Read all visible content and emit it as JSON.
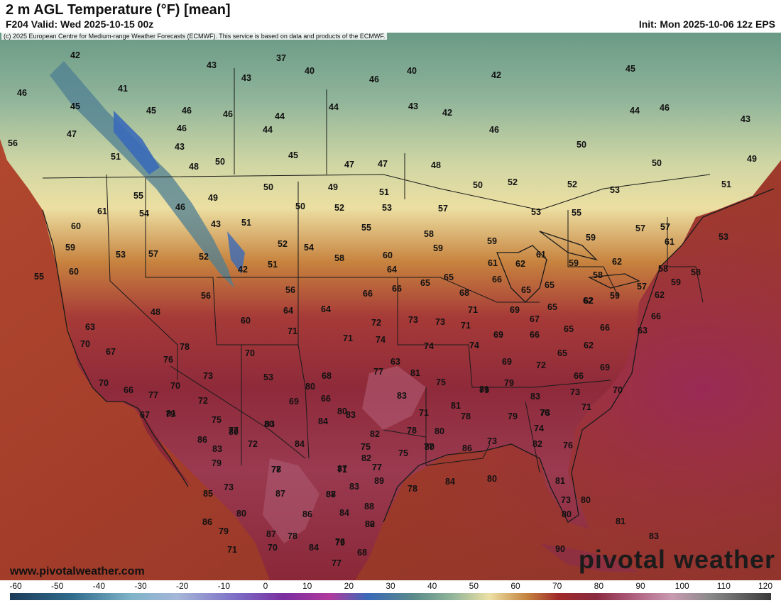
{
  "header": {
    "title": "2 m AGL Temperature (°F) [mean]",
    "valid": "F204 Valid: Wed 2025-10-15 00z",
    "init": "Init: Mon 2025-10-06 12z EPS"
  },
  "map": {
    "credit": "(c) 2025 European Centre for Medium-range Weather Forecasts (ECMWF). This service is based on data and products of the ECMWF.",
    "site": "www.pivotalweather.com",
    "brand": "pivotal weather",
    "temperature_labels": [
      "42",
      "43",
      "37",
      "40",
      "40",
      "42",
      "45",
      "46",
      "41",
      "43",
      "46",
      "45",
      "45",
      "46",
      "46",
      "44",
      "44",
      "43",
      "42",
      "44",
      "46",
      "43",
      "47",
      "46",
      "50",
      "46",
      "51",
      "43",
      "45",
      "47",
      "47",
      "48",
      "50",
      "50",
      "49",
      "44",
      "48",
      "50",
      "52",
      "52",
      "53",
      "51",
      "56",
      "55",
      "49",
      "50",
      "49",
      "51",
      "57",
      "57",
      "61",
      "54",
      "46",
      "50",
      "52",
      "53",
      "53",
      "55",
      "57",
      "60",
      "43",
      "51",
      "55",
      "58",
      "59",
      "59",
      "57",
      "61",
      "53",
      "59",
      "53",
      "57",
      "52",
      "52",
      "54",
      "58",
      "60",
      "59",
      "61",
      "61",
      "62",
      "59",
      "62",
      "58",
      "58",
      "60",
      "42",
      "51",
      "64",
      "65",
      "65",
      "66",
      "58",
      "57",
      "59",
      "59",
      "56",
      "56",
      "64",
      "66",
      "62",
      "62",
      "55",
      "64",
      "66",
      "68",
      "71",
      "69",
      "65",
      "65",
      "65",
      "62",
      "66",
      "72",
      "73",
      "73",
      "71",
      "67",
      "66",
      "63",
      "65",
      "66",
      "48",
      "60",
      "71",
      "71",
      "74",
      "74",
      "69",
      "65",
      "62",
      "63",
      "74",
      "72",
      "69",
      "70",
      "63",
      "77",
      "81",
      "78",
      "70",
      "69",
      "66",
      "67",
      "76",
      "73",
      "53",
      "68",
      "75",
      "81",
      "79",
      "73",
      "70",
      "66",
      "77",
      "72",
      "81",
      "80",
      "83",
      "73",
      "70",
      "71",
      "70",
      "67",
      "66",
      "69",
      "80",
      "79",
      "80",
      "83",
      "78",
      "79",
      "76",
      "75",
      "71",
      "77",
      "83",
      "75",
      "84",
      "86",
      "84",
      "83",
      "82",
      "78",
      "80",
      "80",
      "81",
      "79",
      "74",
      "73",
      "72",
      "78",
      "77",
      "83",
      "80",
      "77",
      "75",
      "79",
      "82",
      "85",
      "86",
      "82",
      "76",
      "73",
      "77",
      "87",
      "83",
      "88",
      "89",
      "87",
      "80",
      "79",
      "80",
      "71",
      "86",
      "88",
      "87",
      "84",
      "87",
      "78",
      "84",
      "81",
      "80",
      "80",
      "79",
      "78",
      "86",
      "73",
      "82",
      "70",
      "80",
      "84",
      "77",
      "76",
      "68",
      "71",
      "81",
      "83",
      "90",
      "81",
      "81"
    ],
    "colorbar_ticks": [
      "-60",
      "-50",
      "-40",
      "-30",
      "-20",
      "-10",
      "0",
      "10",
      "20",
      "30",
      "40",
      "50",
      "60",
      "70",
      "80",
      "90",
      "100",
      "110",
      "120"
    ],
    "colors": {
      "ocean_warm": "#a33d2a",
      "ocean_cool": "#c46a3a",
      "gulf": "#7a2a30",
      "land_cool": "#6a9a86",
      "land_mild": "#e8dca0",
      "land_warm": "#a0303a",
      "mountain_snow": "#3a6ab8",
      "boundary": "#1a1a1a"
    }
  }
}
